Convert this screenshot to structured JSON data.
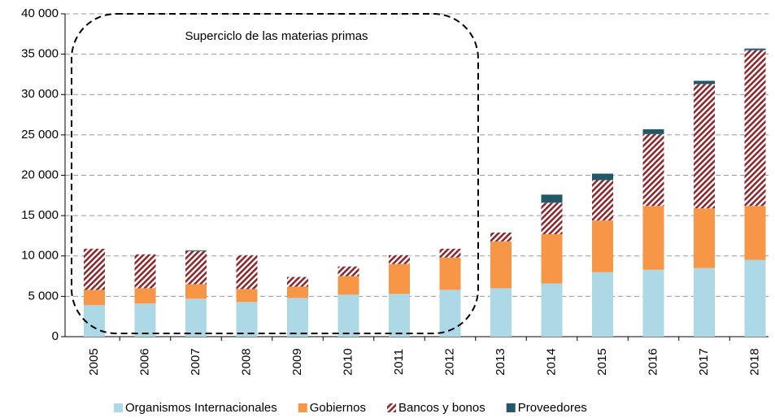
{
  "chart_data": {
    "type": "stacked_bar",
    "annotation": "Superciclo de las materias primas",
    "categories": [
      "2005",
      "2006",
      "2007",
      "2008",
      "2009",
      "2010",
      "2011",
      "2012",
      "2013",
      "2014",
      "2015",
      "2016",
      "2017",
      "2018"
    ],
    "series": [
      {
        "name": "Organismos Internacionales",
        "color": "#add8e6",
        "values": [
          3900,
          4100,
          4700,
          4300,
          4800,
          5200,
          5300,
          5800,
          6000,
          6600,
          8000,
          8300,
          8500,
          9500
        ]
      },
      {
        "name": "Gobiernos",
        "color": "#f79646",
        "values": [
          1900,
          1900,
          1800,
          1600,
          1400,
          2300,
          3700,
          4000,
          5800,
          6100,
          6400,
          7900,
          7400,
          6700
        ]
      },
      {
        "name": "Bancos y bonos",
        "color": "#8b2a2e",
        "pattern": "hatch",
        "values": [
          5100,
          4200,
          4100,
          4200,
          1200,
          1200,
          1100,
          1100,
          1100,
          3900,
          5000,
          8900,
          15400,
          19300
        ]
      },
      {
        "name": "Proveedores",
        "color": "#215968",
        "values": [
          0,
          0,
          100,
          0,
          0,
          0,
          0,
          0,
          0,
          1000,
          800,
          600,
          400,
          200
        ]
      }
    ],
    "ylim": [
      0,
      40000
    ],
    "yticks": [
      0,
      {
        "value": 5000,
        "label": "5 000"
      },
      {
        "value": 10000,
        "label": "10 000"
      },
      {
        "value": 15000,
        "label": "15 000"
      },
      {
        "value": 20000,
        "label": "20 000"
      },
      {
        "value": 25000,
        "label": "25 000"
      },
      {
        "value": 30000,
        "label": "30 000"
      },
      {
        "value": 35000,
        "label": "35 000"
      },
      {
        "value": 40000,
        "label": "40 000"
      }
    ],
    "grid": true,
    "legend": "bottom"
  }
}
